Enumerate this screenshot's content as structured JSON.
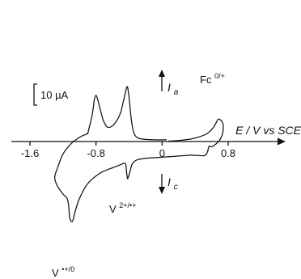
{
  "chart_data": {
    "type": "line",
    "xlabel": "E / V vs SCE",
    "xlim": [
      -1.6,
      0.8
    ],
    "x_ticks": [
      {
        "value": -1.6,
        "label": "-1.6"
      },
      {
        "value": -0.8,
        "label": "-0.8"
      },
      {
        "value": 0,
        "label": "0"
      },
      {
        "value": 0.8,
        "label": "0.8"
      }
    ],
    "scale_bar": {
      "value": 10,
      "unit": "µA",
      "label": "10 µA"
    },
    "current_arrows": {
      "anodic": {
        "symbol": "I",
        "subscript": "a",
        "direction": "up"
      },
      "cathodic": {
        "symbol": "I",
        "subscript": "c",
        "direction": "down"
      }
    },
    "annotations": [
      {
        "label": "Fc",
        "superscript": "0/+",
        "x": 0.68
      },
      {
        "label": "V",
        "superscript": "2+/•+",
        "x": -0.42
      },
      {
        "label": "V",
        "superscript": "•+/0",
        "x": -1.08
      }
    ],
    "series": [
      {
        "branch": "cyclic",
        "x": [
          0.08,
          0.2,
          0.35,
          0.48,
          0.56,
          0.62,
          0.65,
          0.68,
          0.72,
          0.74,
          0.73,
          0.69,
          0.64,
          0.6,
          0.57,
          0.56,
          0.55,
          0.52,
          0.45,
          0.35,
          0.2,
          0.05,
          -0.1,
          -0.2,
          -0.3,
          -0.36,
          -0.39,
          -0.41,
          -0.42,
          -0.43,
          -0.44,
          -0.46,
          -0.5,
          -0.6,
          -0.75,
          -0.9,
          -1.0,
          -1.05,
          -1.08,
          -1.1,
          -1.12,
          -1.13,
          -1.15,
          -1.2,
          -1.27,
          -1.3,
          -1.27,
          -1.2,
          -1.1,
          -1.0,
          -0.92,
          -0.9
        ],
        "y": [
          0.2,
          0.5,
          1.2,
          2.6,
          4.2,
          6.6,
          8.6,
          10.6,
          9.8,
          7.5,
          3.5,
          0.3,
          -1.5,
          -2.5,
          -2.2,
          -3.2,
          -4.8,
          -6.6,
          -6.7,
          -6.5,
          -6.9,
          -7.3,
          -7.7,
          -8.0,
          -8.7,
          -10.5,
          -14.5,
          -17.0,
          -17.5,
          -14.5,
          -11.0,
          -10.3,
          -11.0,
          -12.5,
          -15.0,
          -20.0,
          -27.0,
          -33.0,
          -37.5,
          -38.0,
          -36.0,
          -31.0,
          -27.0,
          -25.0,
          -21.0,
          -17.0,
          -13.0,
          -6.0,
          -1.0,
          2.0,
          3.5,
          3.7
        ]
      },
      {
        "branch": "stripping",
        "x": [
          -0.9,
          -0.88,
          -0.85,
          -0.83,
          -0.82,
          -0.8,
          -0.78,
          -0.76,
          -0.74,
          -0.72,
          -0.7,
          -0.66,
          -0.6,
          -0.54,
          -0.5,
          -0.47,
          -0.44,
          -0.42,
          -0.4,
          -0.38,
          -0.36,
          -0.34,
          -0.32,
          -0.28,
          -0.2,
          -0.1,
          0.05
        ],
        "y": [
          3.7,
          7.0,
          12.0,
          17.0,
          20.0,
          22.0,
          20.0,
          17.0,
          14.0,
          11.0,
          9.0,
          6.8,
          7.5,
          10.5,
          14.0,
          19.0,
          24.0,
          26.0,
          21.0,
          13.0,
          7.0,
          4.0,
          2.5,
          1.5,
          1.0,
          0.8,
          0.8
        ]
      }
    ]
  }
}
